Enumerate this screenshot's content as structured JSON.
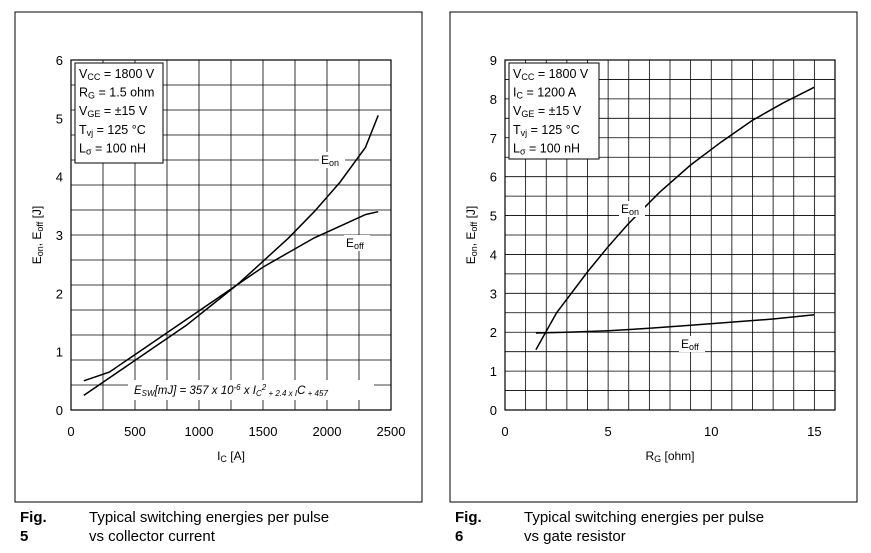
{
  "charts": [
    {
      "fig_number": "Fig. 5",
      "caption_lines": [
        "Typical switching energies per pulse",
        "vs collector current"
      ],
      "ylabel": [
        "E",
        "on",
        ", E",
        "off",
        " [J]"
      ],
      "xlabel": [
        "I",
        "C",
        " [A]"
      ],
      "info_lines": [
        [
          "V",
          "CC",
          " = 1800 V"
        ],
        [
          "R",
          "G",
          " = 1.5 ohm"
        ],
        [
          "V",
          "GE",
          " = ±15 V"
        ],
        [
          "T",
          "vj",
          " = 125 °C"
        ],
        [
          "L",
          "σ",
          " = 100 nH"
        ]
      ],
      "formula": [
        "E",
        "SW",
        "[mJ] = 357 x 10",
        "-6",
        " x I",
        "C",
        "2",
        " + 2.4 x I",
        "C",
        " + 457"
      ],
      "series_labels": [
        [
          "E",
          "on"
        ],
        [
          "E",
          "off"
        ]
      ]
    },
    {
      "fig_number": "Fig. 6",
      "caption_lines": [
        "Typical switching energies per pulse",
        "vs gate resistor"
      ],
      "ylabel": [
        "E",
        "on",
        ", E",
        "off",
        " [J]"
      ],
      "xlabel": [
        "R",
        "G",
        " [ohm]"
      ],
      "info_lines": [
        [
          "V",
          "CC",
          " = 1800 V"
        ],
        [
          "I",
          "C",
          " = 1200 A"
        ],
        [
          "V",
          "GE",
          " = ±15 V"
        ],
        [
          "T",
          "vj",
          " = 125 °C"
        ],
        [
          "L",
          "σ",
          " = 100 nH"
        ]
      ],
      "series_labels": [
        [
          "E",
          "on"
        ],
        [
          "E",
          "off"
        ]
      ]
    }
  ],
  "chart_data": [
    {
      "type": "line",
      "xlim": [
        0,
        2500
      ],
      "ylim": [
        0,
        6
      ],
      "xticks": [
        0,
        500,
        1000,
        1500,
        2000,
        2500
      ],
      "yticks": [
        0,
        1,
        2,
        3,
        4,
        5,
        6
      ],
      "grid": true,
      "series": [
        {
          "name": "Eon",
          "x": [
            100,
            300,
            500,
            700,
            900,
            1100,
            1300,
            1500,
            1700,
            1900,
            2100,
            2300,
            2400
          ],
          "y": [
            0.25,
            0.55,
            0.85,
            1.15,
            1.45,
            1.8,
            2.15,
            2.55,
            2.95,
            3.4,
            3.9,
            4.5,
            5.05
          ]
        },
        {
          "name": "Eoff",
          "x": [
            100,
            300,
            500,
            700,
            900,
            1100,
            1300,
            1500,
            1700,
            1900,
            2100,
            2300,
            2400
          ],
          "y": [
            0.5,
            0.65,
            0.95,
            1.25,
            1.55,
            1.85,
            2.15,
            2.45,
            2.7,
            2.95,
            3.15,
            3.35,
            3.4
          ]
        }
      ]
    },
    {
      "type": "line",
      "xlim": [
        0,
        16
      ],
      "ylim": [
        0,
        9
      ],
      "xticks": [
        0,
        5,
        10,
        15
      ],
      "yticks": [
        0,
        1,
        2,
        3,
        4,
        5,
        6,
        7,
        8,
        9
      ],
      "grid": true,
      "series": [
        {
          "name": "Eon",
          "x": [
            1.5,
            2.5,
            4,
            5,
            6,
            7.5,
            9,
            10.5,
            12,
            13.5,
            15
          ],
          "y": [
            1.55,
            2.5,
            3.55,
            4.2,
            4.8,
            5.6,
            6.3,
            6.9,
            7.45,
            7.9,
            8.3
          ]
        },
        {
          "name": "Eoff",
          "x": [
            1.5,
            3,
            5,
            7,
            9,
            11,
            13,
            15
          ],
          "y": [
            1.98,
            2.0,
            2.04,
            2.1,
            2.18,
            2.26,
            2.34,
            2.45
          ]
        }
      ]
    }
  ]
}
